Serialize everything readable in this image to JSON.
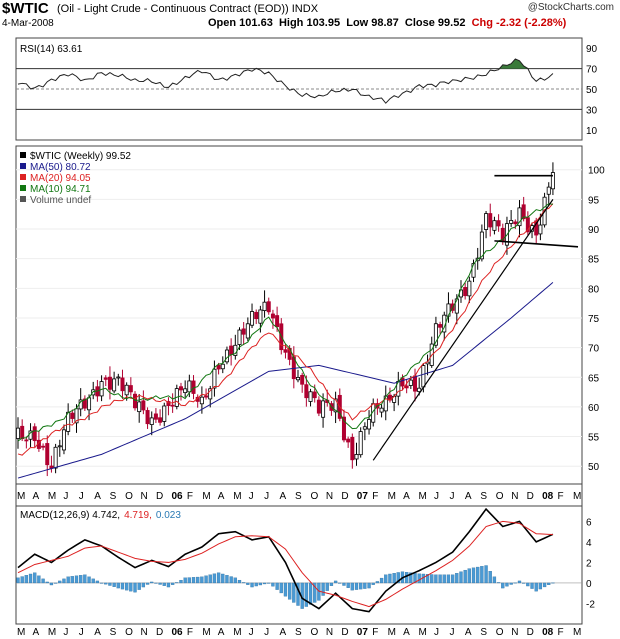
{
  "header": {
    "symbol": "$WTIC",
    "subtitle": "(Oil - Light Crude - Continuous Contract (EOD))  INDX",
    "date": "4-Mar-2008",
    "open": "Open 101.63",
    "high": "High 103.95",
    "low": "Low 98.87",
    "close": "Close 99.52",
    "chg": "Chg -2.32 (-2.28%)",
    "watermark": "@StockCharts.com"
  },
  "colors": {
    "up": "#000000",
    "down": "#b00030",
    "ma50": "#1a1a8c",
    "ma20": "#dd2222",
    "ma10": "#117711",
    "rsi_fill": "#3a7a3a",
    "hist": "#4a9ad4"
  },
  "legend": {
    "price": "$WTIC (Weekly) 99.52",
    "ma50": "MA(50) 80.72",
    "ma20": "MA(20) 94.05",
    "ma10": "MA(10) 94.71",
    "volume": "Volume undef",
    "rsi": "RSI(14) 63.61",
    "macd_a": "MACD(12,26,9) 4.742,",
    "macd_b": "4.719,",
    "macd_c": "0.023"
  },
  "chart_data": [
    {
      "type": "line",
      "panel": "rsi",
      "title": "RSI(14) 63.61",
      "ylim": [
        0,
        100
      ],
      "ticks": [
        90,
        70,
        50,
        30,
        10
      ],
      "reference_lines": [
        70,
        50,
        30
      ],
      "x": [
        0,
        4,
        8,
        12,
        16,
        20,
        24,
        28,
        32,
        36,
        40,
        44,
        48,
        52,
        56,
        60,
        64,
        68,
        72,
        76,
        80,
        84,
        88,
        92,
        96,
        100,
        104,
        108,
        112,
        116,
        120,
        124,
        128
      ],
      "values": [
        55,
        52,
        60,
        63,
        57,
        68,
        64,
        56,
        58,
        54,
        60,
        66,
        60,
        65,
        68,
        64,
        55,
        45,
        40,
        48,
        52,
        42,
        36,
        46,
        55,
        53,
        56,
        62,
        66,
        70,
        78,
        60,
        63.61
      ]
    },
    {
      "type": "candlestick",
      "panel": "price",
      "title": "$WTIC (Weekly) 99.52",
      "ylim": [
        47,
        104
      ],
      "ticks": [
        100,
        95,
        90,
        85,
        80,
        75,
        70,
        65,
        60,
        55,
        50
      ],
      "x_labels": [
        "M",
        "A",
        "M",
        "J",
        "J",
        "A",
        "S",
        "O",
        "N",
        "D",
        "06",
        "F",
        "M",
        "A",
        "M",
        "J",
        "J",
        "A",
        "S",
        "O",
        "N",
        "D",
        "07",
        "F",
        "M",
        "A",
        "M",
        "J",
        "J",
        "A",
        "S",
        "O",
        "N",
        "D",
        "08",
        "F",
        "M"
      ],
      "close_anchors": {
        "x": [
          0,
          4,
          8,
          12,
          16,
          20,
          24,
          28,
          32,
          36,
          40,
          44,
          48,
          52,
          56,
          60,
          64,
          68,
          72,
          76,
          80,
          84,
          88,
          92,
          96,
          100,
          104,
          108,
          112,
          116,
          120,
          124,
          128
        ],
        "values": [
          55,
          56,
          50,
          57,
          61,
          65,
          64,
          60,
          58,
          61,
          63,
          60,
          68,
          71,
          74,
          77,
          70,
          63,
          59,
          61,
          52,
          58,
          60,
          65,
          64,
          72,
          77,
          82,
          92,
          88,
          93,
          90,
          99.52
        ]
      },
      "moving_averages": [
        {
          "name": "MA(50)",
          "last": 80.72,
          "x": [
            0,
            20,
            40,
            60,
            72,
            90,
            104,
            118,
            128
          ],
          "values": [
            48,
            52,
            58,
            66,
            67,
            64,
            67,
            75,
            81
          ]
        },
        {
          "name": "MA(20)",
          "last": 94.05,
          "x": [
            0,
            10,
            20,
            30,
            40,
            50,
            60,
            70,
            80,
            90,
            100,
            110,
            120,
            128
          ],
          "values": [
            52,
            56,
            60,
            62,
            60,
            65,
            73,
            66,
            58,
            62,
            69,
            80,
            89,
            94.05
          ]
        },
        {
          "name": "MA(10)",
          "last": 94.71,
          "x": [
            0,
            10,
            20,
            30,
            40,
            50,
            60,
            70,
            80,
            90,
            100,
            110,
            120,
            128
          ],
          "values": [
            54,
            58,
            63,
            61,
            62,
            68,
            75,
            64,
            56,
            63,
            71,
            85,
            91,
            94.71
          ]
        }
      ],
      "trendlines": [
        {
          "x": [
            85,
            128
          ],
          "values": [
            51,
            95
          ]
        },
        {
          "x": [
            114,
            128
          ],
          "values": [
            99,
            99
          ]
        },
        {
          "x": [
            114,
            134
          ],
          "values": [
            88,
            87
          ]
        }
      ]
    },
    {
      "type": "line",
      "panel": "macd",
      "title": "MACD(12,26,9) 4.742, 4.719, 0.023",
      "ylim": [
        -4,
        7.5
      ],
      "ticks": [
        6,
        4,
        2,
        0,
        -2
      ],
      "x": [
        0,
        4,
        8,
        12,
        16,
        20,
        24,
        28,
        32,
        36,
        40,
        44,
        48,
        52,
        56,
        60,
        64,
        68,
        72,
        76,
        80,
        84,
        88,
        92,
        96,
        100,
        104,
        108,
        112,
        116,
        120,
        124,
        128
      ],
      "series": [
        {
          "name": "MACD",
          "values": [
            1.5,
            2.8,
            2.0,
            3.2,
            4.2,
            3.6,
            2.5,
            1.5,
            2.2,
            1.6,
            2.8,
            3.5,
            4.8,
            5.0,
            4.2,
            4.5,
            2.0,
            -1.5,
            -2.5,
            -1.0,
            -2.5,
            -2.8,
            -0.8,
            0.5,
            1.2,
            2.0,
            3.0,
            5.0,
            7.2,
            5.5,
            6.0,
            4.0,
            4.742
          ]
        },
        {
          "name": "Signal",
          "values": [
            1.0,
            1.8,
            2.2,
            2.6,
            3.4,
            3.6,
            3.0,
            2.4,
            2.1,
            2.0,
            2.3,
            2.9,
            3.8,
            4.5,
            4.6,
            4.5,
            3.3,
            1.0,
            -0.8,
            -1.2,
            -1.8,
            -2.3,
            -1.6,
            -0.6,
            0.3,
            1.2,
            2.2,
            3.6,
            5.5,
            6.0,
            5.8,
            4.8,
            4.719
          ]
        }
      ],
      "histogram": [
        0.5,
        1.0,
        -0.2,
        0.6,
        0.8,
        0.0,
        -0.5,
        -0.9,
        0.1,
        -0.4,
        0.5,
        0.6,
        1.0,
        0.5,
        -0.4,
        0.0,
        -1.3,
        -2.5,
        -1.7,
        0.2,
        -0.7,
        -0.5,
        0.8,
        1.1,
        0.9,
        0.8,
        0.8,
        1.4,
        1.7,
        -0.5,
        0.2,
        -0.8,
        0.023
      ]
    }
  ],
  "macd_x_labels": [
    "M",
    "A",
    "M",
    "J",
    "J",
    "A",
    "S",
    "O",
    "N",
    "D",
    "06",
    "F",
    "M",
    "A",
    "M",
    "J",
    "J",
    "A",
    "S",
    "O",
    "N",
    "D",
    "07",
    "F",
    "M",
    "A",
    "M",
    "J",
    "J",
    "A",
    "S",
    "O",
    "N",
    "D",
    "08",
    "F",
    "M"
  ]
}
